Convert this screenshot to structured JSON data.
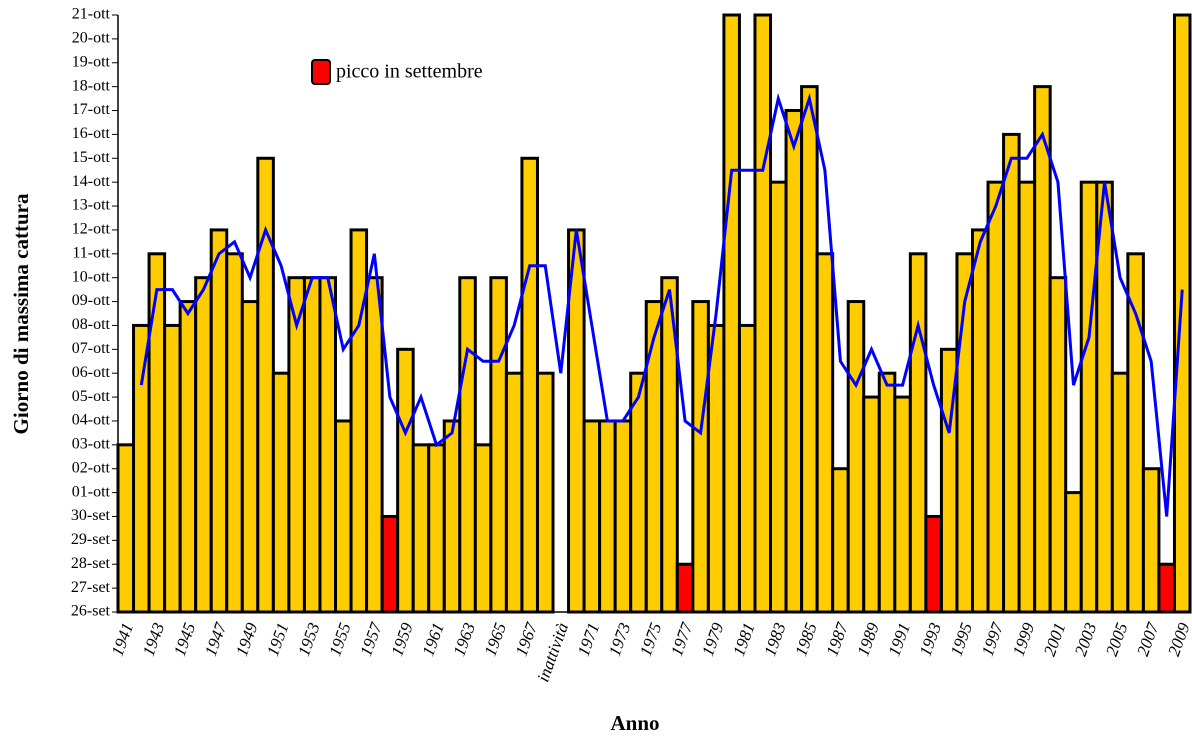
{
  "chart_data": {
    "type": "bar",
    "x_label": "Anno",
    "y_label": "Giorno di massima cattura",
    "categories": [
      "1941",
      null,
      "1943",
      null,
      "1945",
      null,
      "1947",
      null,
      "1949",
      null,
      "1951",
      null,
      "1953",
      null,
      "1955",
      null,
      "1957",
      null,
      "1959",
      null,
      "1961",
      null,
      "1963",
      null,
      "1965",
      null,
      "1967",
      null,
      "inattività",
      null,
      "1971",
      null,
      "1973",
      null,
      "1975",
      null,
      "1977",
      null,
      "1979",
      null,
      "1981",
      null,
      "1983",
      null,
      "1985",
      null,
      "1987",
      null,
      "1989",
      null,
      "1991",
      null,
      "1993",
      null,
      "1995",
      null,
      "1997",
      null,
      "1999",
      null,
      "2001",
      null,
      "2003",
      null,
      "2005",
      null,
      "2007",
      null,
      "2009"
    ],
    "values": [
      7,
      12,
      15,
      12,
      13,
      14,
      16,
      15,
      13,
      19,
      10,
      14,
      14,
      14,
      8,
      16,
      14,
      4,
      11,
      7,
      7,
      8,
      14,
      7,
      14,
      10,
      19,
      10,
      null,
      16,
      8,
      8,
      8,
      10,
      13,
      14,
      2,
      13,
      12,
      25,
      12,
      25,
      18,
      21,
      22,
      15,
      6,
      13,
      9,
      10,
      9,
      15,
      4,
      11,
      15,
      16,
      18,
      20,
      18,
      22,
      14,
      5,
      18,
      18,
      10,
      15,
      6,
      2,
      25
    ],
    "colors": [
      "#ffcc00",
      "#ffcc00",
      "#ffcc00",
      "#ffcc00",
      "#ffcc00",
      "#ffcc00",
      "#ffcc00",
      "#ffcc00",
      "#ffcc00",
      "#ffcc00",
      "#ffcc00",
      "#ffcc00",
      "#ffcc00",
      "#ffcc00",
      "#ffcc00",
      "#ffcc00",
      "#ffcc00",
      "#ff0000",
      "#ffcc00",
      "#ffcc00",
      "#ffcc00",
      "#ffcc00",
      "#ffcc00",
      "#ffcc00",
      "#ffcc00",
      "#ffcc00",
      "#ffcc00",
      "#ffcc00",
      "#ffcc00",
      "#ffcc00",
      "#ffcc00",
      "#ffcc00",
      "#ffcc00",
      "#ffcc00",
      "#ffcc00",
      "#ffcc00",
      "#ff0000",
      "#ffcc00",
      "#ffcc00",
      "#ffcc00",
      "#ffcc00",
      "#ffcc00",
      "#ffcc00",
      "#ffcc00",
      "#ffcc00",
      "#ffcc00",
      "#ffcc00",
      "#ffcc00",
      "#ffcc00",
      "#ffcc00",
      "#ffcc00",
      "#ffcc00",
      "#ff0000",
      "#ffcc00",
      "#ffcc00",
      "#ffcc00",
      "#ffcc00",
      "#ffcc00",
      "#ffcc00",
      "#ffcc00",
      "#ffcc00",
      "#ffcc00",
      "#ffcc00",
      "#ffcc00",
      "#ffcc00",
      "#ffcc00",
      "#ffcc00",
      "#ff0000",
      "#ffcc00"
    ],
    "line": {
      "color": "#0000ff",
      "values": [
        null,
        9.5,
        13.5,
        13.5,
        12.5,
        13.5,
        15,
        15.5,
        14,
        16,
        14.5,
        12,
        14,
        14,
        11,
        12,
        15,
        9,
        7.5,
        9,
        7,
        7.5,
        11,
        10.5,
        10.5,
        12,
        14.5,
        14.5,
        10,
        16,
        12,
        8,
        8,
        9,
        11.5,
        13.5,
        8,
        7.5,
        12.5,
        18.5,
        18.5,
        18.5,
        21.5,
        19.5,
        21.5,
        18.5,
        10.5,
        9.5,
        11,
        9.5,
        9.5,
        12,
        9.5,
        7.5,
        13,
        15.5,
        17,
        19,
        19,
        20,
        18,
        9.5,
        11.5,
        18,
        14,
        12.5,
        10.5,
        4,
        13.5
      ]
    },
    "legend": [
      {
        "label": "picco in settembre",
        "color": "#ff0000"
      }
    ],
    "ylim": [
      0,
      25
    ],
    "yticks": [
      {
        "value": 0,
        "label": "26-set"
      },
      {
        "value": 1,
        "label": "27-set"
      },
      {
        "value": 2,
        "label": "28-set"
      },
      {
        "value": 3,
        "label": "29-set"
      },
      {
        "value": 4,
        "label": "30-set"
      },
      {
        "value": 5,
        "label": "01-ott"
      },
      {
        "value": 6,
        "label": "02-ott"
      },
      {
        "value": 7,
        "label": "03-ott"
      },
      {
        "value": 8,
        "label": "04-ott"
      },
      {
        "value": 9,
        "label": "05-ott"
      },
      {
        "value": 10,
        "label": "06-ott"
      },
      {
        "value": 11,
        "label": "07-ott"
      },
      {
        "value": 12,
        "label": "08-ott"
      },
      {
        "value": 13,
        "label": "09-ott"
      },
      {
        "value": 14,
        "label": "10-ott"
      },
      {
        "value": 15,
        "label": "11-ott"
      },
      {
        "value": 16,
        "label": "12-ott"
      },
      {
        "value": 17,
        "label": "13-ott"
      },
      {
        "value": 18,
        "label": "14-ott"
      },
      {
        "value": 19,
        "label": "15-ott"
      },
      {
        "value": 20,
        "label": "16-ott"
      },
      {
        "value": 21,
        "label": "17-ott"
      },
      {
        "value": 22,
        "label": "18-ott"
      },
      {
        "value": 23,
        "label": "19-ott"
      },
      {
        "value": 24,
        "label": "20-ott"
      },
      {
        "value": 25,
        "label": "21-ott"
      }
    ]
  }
}
